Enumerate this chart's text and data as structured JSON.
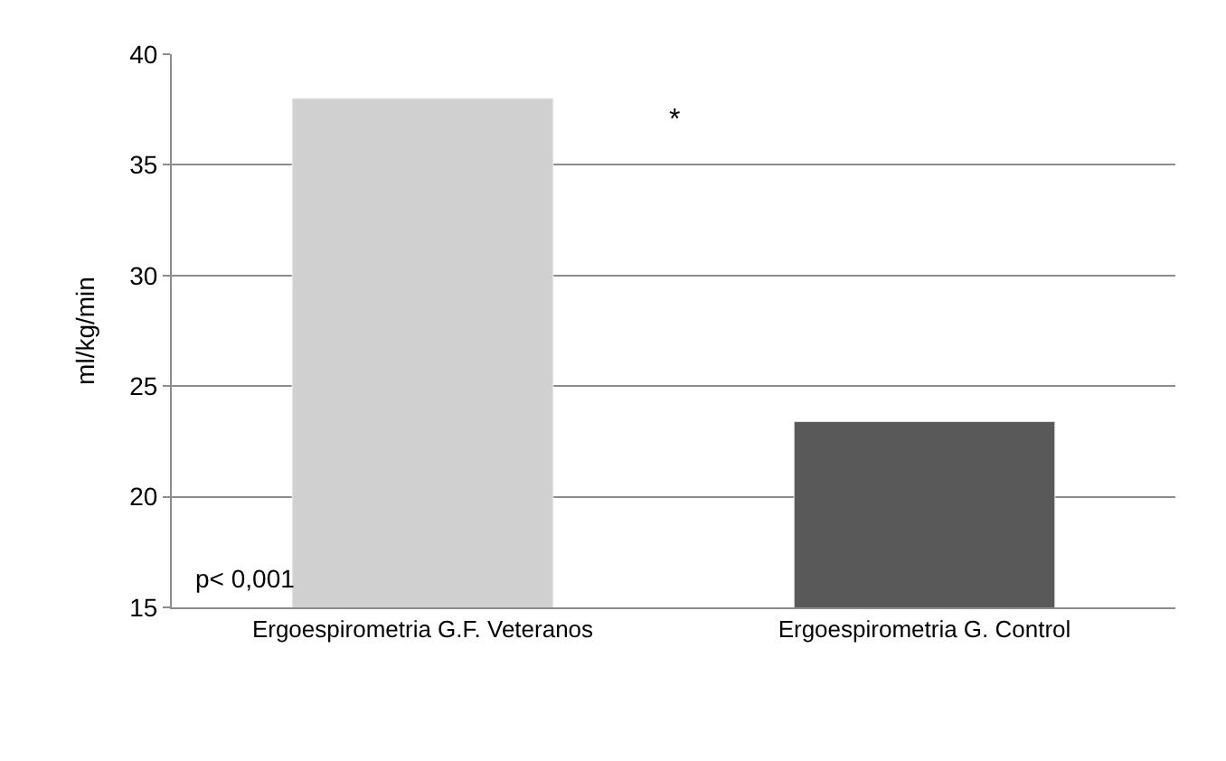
{
  "chart_data": {
    "type": "bar",
    "ylabel": "ml/kg/min",
    "categories": [
      "Ergoespirometria G.F. Veteranos",
      "Ergoespirometria G. Control"
    ],
    "values": [
      38.0,
      23.4
    ],
    "colors": [
      "#d0d0d0",
      "#595959"
    ],
    "ylim": [
      15,
      40
    ],
    "yticks": [
      15,
      20,
      25,
      30,
      35,
      40
    ],
    "grid": "y",
    "annotations": [
      "*",
      "p< 0,001"
    ]
  }
}
